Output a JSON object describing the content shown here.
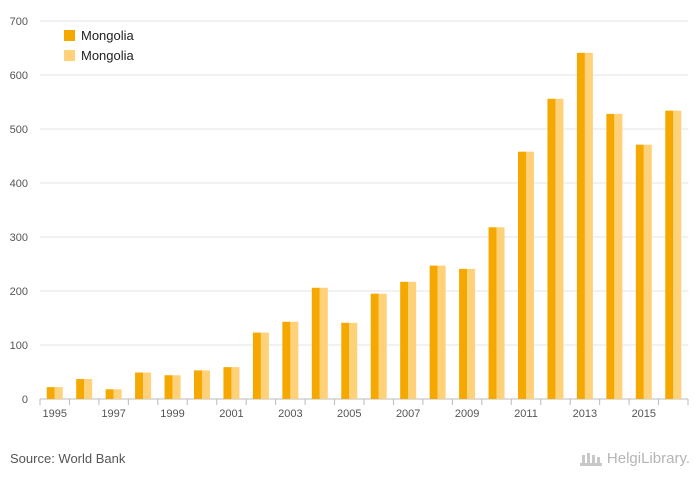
{
  "chart_data": {
    "type": "bar",
    "categories": [
      "1995",
      "1996",
      "1997",
      "1998",
      "1999",
      "2000",
      "2001",
      "2002",
      "2003",
      "2004",
      "2005",
      "2006",
      "2007",
      "2008",
      "2009",
      "2010",
      "2011",
      "2012",
      "2013",
      "2014",
      "2015",
      "2016"
    ],
    "x_tick_labels": [
      "1995",
      "1997",
      "1999",
      "2001",
      "2003",
      "2005",
      "2007",
      "2009",
      "2011",
      "2013",
      "2015"
    ],
    "series": [
      {
        "name": "Mongolia",
        "color": "#f5a800",
        "values": [
          22,
          37,
          18,
          49,
          44,
          53,
          59,
          123,
          143,
          206,
          141,
          195,
          217,
          247,
          241,
          318,
          458,
          556,
          641,
          528,
          471,
          534
        ]
      },
      {
        "name": "Mongolia",
        "color": "#ffd27a",
        "values": [
          22,
          37,
          18,
          49,
          44,
          53,
          59,
          123,
          143,
          206,
          141,
          195,
          217,
          247,
          241,
          318,
          458,
          556,
          641,
          528,
          471,
          534
        ]
      }
    ],
    "ylim": [
      0,
      700
    ],
    "y_ticks": [
      0,
      100,
      200,
      300,
      400,
      500,
      600,
      700
    ],
    "grid": true,
    "legend_position": "top-left"
  },
  "footer": {
    "source": "Source: World Bank",
    "brand": "HelgiLibrary."
  }
}
